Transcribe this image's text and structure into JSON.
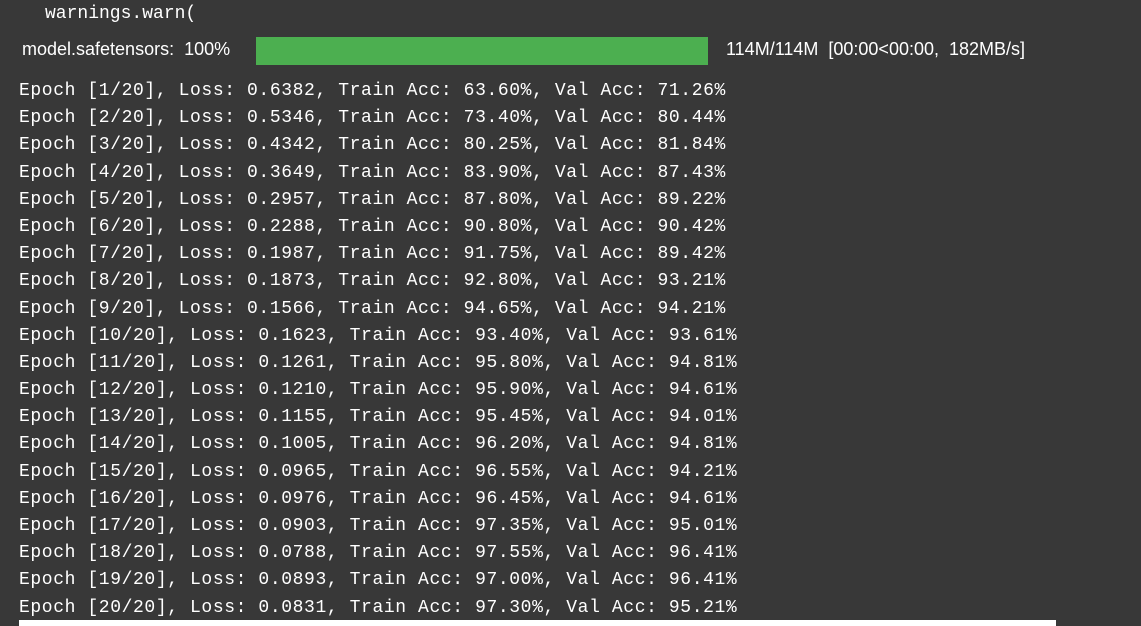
{
  "warning": {
    "text": "warnings.warn("
  },
  "download": {
    "label": "model.safetensors:  100%",
    "percent": 100,
    "stats": "114M/114M  [00:00<00:00,  182MB/s]",
    "bar_color": "#4caf50"
  },
  "epochs": [
    "Epoch [1/20], Loss: 0.6382, Train Acc: 63.60%, Val Acc: 71.26%",
    "Epoch [2/20], Loss: 0.5346, Train Acc: 73.40%, Val Acc: 80.44%",
    "Epoch [3/20], Loss: 0.4342, Train Acc: 80.25%, Val Acc: 81.84%",
    "Epoch [4/20], Loss: 0.3649, Train Acc: 83.90%, Val Acc: 87.43%",
    "Epoch [5/20], Loss: 0.2957, Train Acc: 87.80%, Val Acc: 89.22%",
    "Epoch [6/20], Loss: 0.2288, Train Acc: 90.80%, Val Acc: 90.42%",
    "Epoch [7/20], Loss: 0.1987, Train Acc: 91.75%, Val Acc: 89.42%",
    "Epoch [8/20], Loss: 0.1873, Train Acc: 92.80%, Val Acc: 93.21%",
    "Epoch [9/20], Loss: 0.1566, Train Acc: 94.65%, Val Acc: 94.21%",
    "Epoch [10/20], Loss: 0.1623, Train Acc: 93.40%, Val Acc: 93.61%",
    "Epoch [11/20], Loss: 0.1261, Train Acc: 95.80%, Val Acc: 94.81%",
    "Epoch [12/20], Loss: 0.1210, Train Acc: 95.90%, Val Acc: 94.61%",
    "Epoch [13/20], Loss: 0.1155, Train Acc: 95.45%, Val Acc: 94.01%",
    "Epoch [14/20], Loss: 0.1005, Train Acc: 96.20%, Val Acc: 94.81%",
    "Epoch [15/20], Loss: 0.0965, Train Acc: 96.55%, Val Acc: 94.21%",
    "Epoch [16/20], Loss: 0.0976, Train Acc: 96.45%, Val Acc: 94.61%",
    "Epoch [17/20], Loss: 0.0903, Train Acc: 97.35%, Val Acc: 95.01%",
    "Epoch [18/20], Loss: 0.0788, Train Acc: 97.55%, Val Acc: 96.41%",
    "Epoch [19/20], Loss: 0.0893, Train Acc: 97.00%, Val Acc: 96.41%",
    "Epoch [20/20], Loss: 0.0831, Train Acc: 97.30%, Val Acc: 95.21%"
  ]
}
